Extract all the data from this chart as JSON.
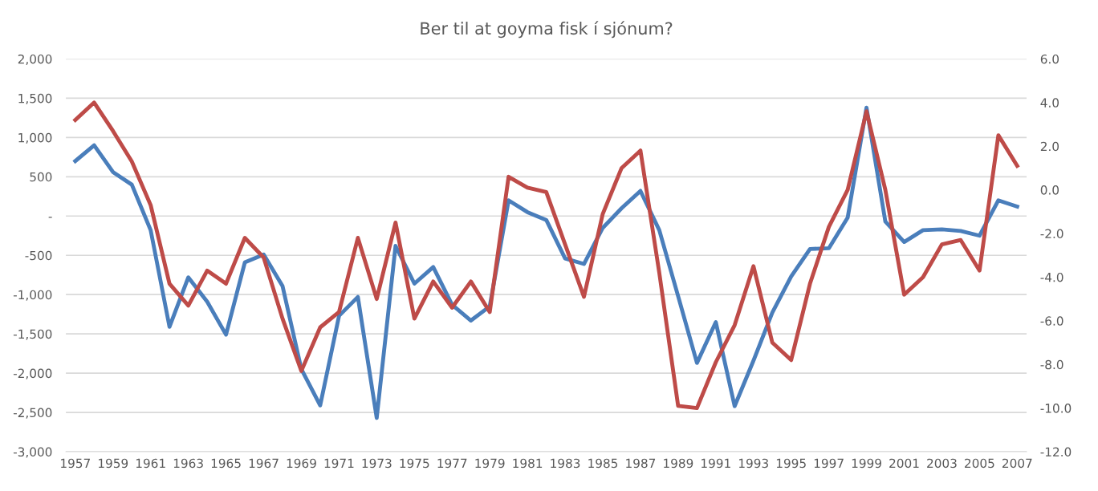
{
  "chart_data": {
    "type": "line",
    "title": "Ber til at goyma fisk í sjónum?",
    "categories": [
      "1957",
      null,
      "1959",
      null,
      "1961",
      null,
      "1963",
      null,
      "1965",
      null,
      "1967",
      null,
      "1969",
      null,
      "1971",
      null,
      "1973",
      null,
      "1975",
      null,
      "1977",
      null,
      "1979",
      null,
      "1981",
      null,
      "1983",
      null,
      "1985",
      null,
      "1987",
      null,
      "1989",
      null,
      "1991",
      null,
      "1993",
      null,
      "1995",
      null,
      "1997",
      null,
      "1999",
      null,
      "2001",
      null,
      "2003",
      null,
      "2005",
      null,
      "2007"
    ],
    "series": [
      {
        "color": "#4a7ebb",
        "axis": "y",
        "values": [
          700,
          900,
          560,
          400,
          -180,
          -1410,
          -780,
          -1090,
          -1510,
          -590,
          -490,
          -890,
          -1950,
          -2410,
          -1270,
          -1030,
          -2570,
          -380,
          -860,
          -650,
          -1130,
          -1330,
          -1150,
          200,
          50,
          -50,
          -540,
          -610,
          -150,
          100,
          320,
          -180,
          -1020,
          -1870,
          -1350,
          -2420,
          -1840,
          -1230,
          -770,
          -420,
          -410,
          -20,
          1380,
          -70,
          -330,
          -180,
          -170,
          -190,
          -250,
          200,
          120
        ]
      },
      {
        "color": "#be4b48",
        "axis": "y2",
        "values": [
          3.2,
          4.0,
          2.7,
          1.3,
          -0.7,
          -4.3,
          -5.3,
          -3.7,
          -4.3,
          -2.2,
          -3.1,
          -5.9,
          -8.3,
          -6.3,
          -5.6,
          -2.2,
          -5.0,
          -1.5,
          -5.9,
          -4.2,
          -5.4,
          -4.2,
          -5.6,
          0.6,
          0.1,
          -0.1,
          -2.5,
          -4.9,
          -1.1,
          1.0,
          1.8,
          -3.8,
          -9.9,
          -10.0,
          -7.9,
          -6.2,
          -3.5,
          -7.0,
          -7.8,
          -4.3,
          -1.7,
          0.0,
          3.6,
          0.0,
          -4.8,
          -4.0,
          -2.5,
          -2.3,
          -3.7,
          2.5,
          1.1
        ]
      }
    ],
    "ylim": [
      -3000,
      2000
    ],
    "yticks": [
      {
        "value": -3000,
        "label": "-3,000"
      },
      {
        "value": -2500,
        "label": "-2,500"
      },
      {
        "value": -2000,
        "label": "-2,000"
      },
      {
        "value": -1500,
        "label": "-1,500"
      },
      {
        "value": -1000,
        "label": "-1,000"
      },
      {
        "value": -500,
        "label": "-500"
      },
      {
        "value": 0,
        "label": "-"
      },
      500,
      {
        "value": 1000,
        "label": "1,000"
      },
      {
        "value": 1500,
        "label": "1,500"
      },
      {
        "value": 2000,
        "label": "2,000"
      }
    ],
    "y2lim": [
      -12,
      6
    ],
    "y2ticks": [
      {
        "value": -12,
        "label": "-12.0"
      },
      {
        "value": -10,
        "label": "-10.0"
      },
      {
        "value": -8,
        "label": "-8.0"
      },
      {
        "value": -6,
        "label": "-6.0"
      },
      {
        "value": -4,
        "label": "-4.0"
      },
      {
        "value": -2,
        "label": "-2.0"
      },
      {
        "value": 0,
        "label": "0.0"
      },
      {
        "value": 2,
        "label": "2.0"
      },
      {
        "value": 4,
        "label": "4.0"
      },
      {
        "value": 6,
        "label": "6.0"
      }
    ],
    "grid": "y",
    "line_style": "solid"
  }
}
